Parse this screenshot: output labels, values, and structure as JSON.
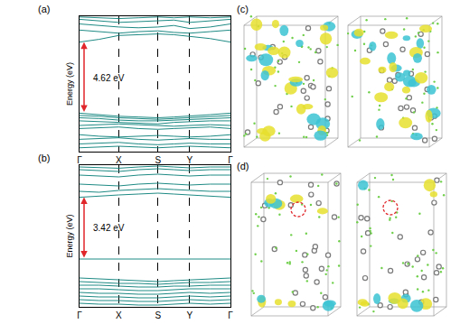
{
  "chart_data": [
    {
      "type": "line",
      "label": "(a)",
      "y_label": "Energy (eV)",
      "color": "#1e8a84",
      "grid": true,
      "tick_labels": "x",
      "x": [
        0,
        0.13,
        0.26,
        0.39,
        0.52,
        0.625,
        0.73,
        0.865,
        1.0
      ],
      "xlim": [
        0,
        1.0
      ],
      "xticks": [
        {
          "value": 0,
          "label": "Γ"
        },
        {
          "value": 0.26,
          "label": "X"
        },
        {
          "value": 0.52,
          "label": "S"
        },
        {
          "value": 0.73,
          "label": "Y"
        },
        {
          "value": 1.0,
          "label": "Γ"
        }
      ],
      "ylim": [
        -2.5,
        6.3
      ],
      "series": [
        {
          "values": [
            0,
            -0.1,
            -0.2,
            -0.25,
            -0.3,
            -0.25,
            -0.2,
            -0.1,
            0
          ]
        },
        {
          "values": [
            -0.15,
            -0.2,
            -0.3,
            -0.35,
            -0.4,
            -0.35,
            -0.3,
            -0.25,
            -0.15
          ]
        },
        {
          "values": [
            -0.3,
            -0.35,
            -0.45,
            -0.5,
            -0.5,
            -0.45,
            -0.4,
            -0.35,
            -0.3
          ]
        },
        {
          "values": [
            -0.5,
            -0.55,
            -0.6,
            -0.65,
            -0.7,
            -0.6,
            -0.55,
            -0.5,
            -0.5
          ]
        },
        {
          "values": [
            -0.8,
            -0.75,
            -0.7,
            -0.75,
            -0.8,
            -0.85,
            -0.8,
            -0.75,
            -0.8
          ]
        },
        {
          "values": [
            -1.0,
            -0.95,
            -0.9,
            -1.0,
            -1.05,
            -1.0,
            -0.95,
            -0.9,
            -1.0
          ]
        },
        {
          "values": [
            -1.4,
            -1.5,
            -1.55,
            -1.5,
            -1.45,
            -1.5,
            -1.55,
            -1.5,
            -1.4
          ]
        },
        {
          "values": [
            -1.7,
            -1.65,
            -1.6,
            -1.7,
            -1.75,
            -1.7,
            -1.65,
            -1.7,
            -1.7
          ]
        },
        {
          "values": [
            -2.0,
            -1.95,
            -1.9,
            -2.0,
            -2.05,
            -2.0,
            -1.95,
            -2.0,
            -2.0
          ]
        },
        {
          "values": [
            -2.25,
            -2.2,
            -2.15,
            -2.2,
            -2.25,
            -2.2,
            -2.15,
            -2.2,
            -2.25
          ]
        },
        {
          "values": [
            4.62,
            4.8,
            5.05,
            5.1,
            5.15,
            5.1,
            5.0,
            4.85,
            4.62
          ]
        },
        {
          "values": [
            5.4,
            5.3,
            5.2,
            5.3,
            5.35,
            5.25,
            5.2,
            5.3,
            5.4
          ]
        },
        {
          "values": [
            5.8,
            5.7,
            5.6,
            5.55,
            5.6,
            5.7,
            5.5,
            5.6,
            5.8
          ]
        },
        {
          "values": [
            6.1,
            6.0,
            5.9,
            5.95,
            6.0,
            6.05,
            5.9,
            6.0,
            6.1
          ]
        },
        {
          "values": [
            6.25,
            6.2,
            6.15,
            6.2,
            6.25,
            6.2,
            6.25,
            6.2,
            6.25
          ]
        }
      ],
      "annotations": [
        {
          "text": "4.62 eV",
          "y_from": 0,
          "y_to": 4.62
        }
      ]
    },
    {
      "type": "line",
      "label": "(b)",
      "y_label": "Energy (eV)",
      "color": "#1e8a84",
      "grid": true,
      "tick_labels": "x",
      "x": [
        0,
        0.13,
        0.26,
        0.39,
        0.52,
        0.625,
        0.73,
        0.865,
        1.0
      ],
      "xlim": [
        0,
        1.0
      ],
      "xticks": [
        {
          "value": 0,
          "label": "Γ"
        },
        {
          "value": 0.26,
          "label": "X"
        },
        {
          "value": 0.52,
          "label": "S"
        },
        {
          "value": 0.73,
          "label": "Y"
        },
        {
          "value": 1.0,
          "label": "Γ"
        }
      ],
      "ylim": [
        -1.6,
        6.25
      ],
      "series": [
        {
          "values": [
            0,
            -0.05,
            -0.1,
            -0.15,
            -0.2,
            -0.15,
            -0.1,
            -0.05,
            0
          ]
        },
        {
          "values": [
            -0.2,
            -0.25,
            -0.3,
            -0.3,
            -0.35,
            -0.3,
            -0.25,
            -0.25,
            -0.2
          ]
        },
        {
          "values": [
            -0.4,
            -0.4,
            -0.45,
            -0.5,
            -0.5,
            -0.45,
            -0.45,
            -0.4,
            -0.4
          ]
        },
        {
          "values": [
            -0.6,
            -0.6,
            -0.65,
            -0.7,
            -0.7,
            -0.65,
            -0.6,
            -0.6,
            -0.6
          ]
        },
        {
          "values": [
            -0.8,
            -0.85,
            -0.85,
            -0.9,
            -0.9,
            -0.85,
            -0.8,
            -0.85,
            -0.8
          ]
        },
        {
          "values": [
            -1.0,
            -1.05,
            -1.05,
            -1.1,
            -1.1,
            -1.05,
            -1.0,
            -1.05,
            -1.0
          ]
        },
        {
          "values": [
            -1.2,
            -1.25,
            -1.25,
            -1.3,
            -1.3,
            -1.25,
            -1.2,
            -1.25,
            -1.2
          ]
        },
        {
          "values": [
            -1.4,
            -1.45,
            -1.45,
            -1.5,
            -1.5,
            -1.45,
            -1.4,
            -1.45,
            -1.4
          ]
        },
        {
          "values": [
            1.05,
            1.05,
            1.05,
            1.05,
            1.05,
            1.05,
            1.05,
            1.05,
            1.05
          ]
        },
        {
          "values": [
            4.47,
            4.55,
            4.6,
            4.65,
            4.7,
            4.65,
            4.6,
            4.55,
            4.47
          ]
        },
        {
          "values": [
            4.8,
            4.75,
            4.85,
            4.9,
            4.95,
            4.9,
            4.85,
            4.8,
            4.8
          ]
        },
        {
          "values": [
            5.2,
            5.15,
            5.1,
            5.2,
            5.25,
            5.2,
            5.15,
            5.2,
            5.2
          ]
        },
        {
          "values": [
            5.7,
            5.65,
            5.6,
            5.7,
            5.75,
            5.7,
            5.65,
            5.7,
            5.7
          ]
        },
        {
          "values": [
            6.0,
            5.95,
            5.9,
            6.0,
            6.05,
            6.0,
            5.95,
            6.0,
            6.0
          ]
        },
        {
          "values": [
            6.15,
            6.12,
            6.08,
            6.15,
            6.2,
            6.15,
            6.1,
            6.15,
            6.15
          ]
        }
      ],
      "annotations": [
        {
          "text": "3.42 eV",
          "y_from": 1.05,
          "y_to": 4.47
        }
      ]
    }
  ],
  "images": [
    {
      "label": "(c)"
    },
    {
      "label": "(d)"
    }
  ]
}
